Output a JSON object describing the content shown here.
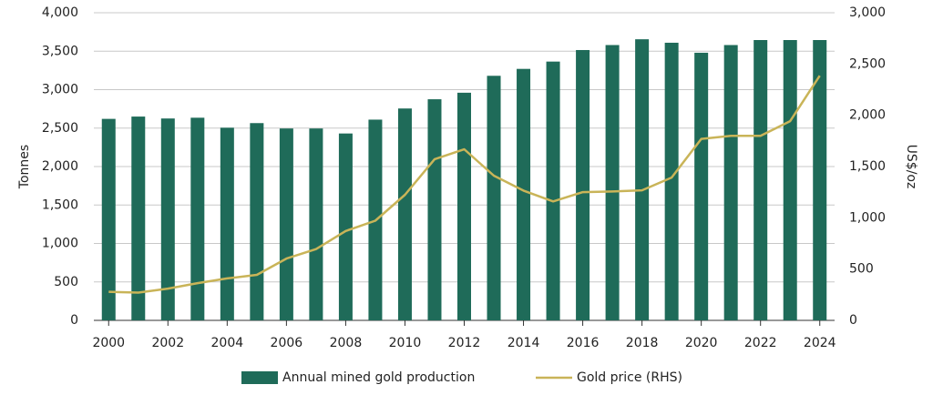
{
  "chart_data": {
    "type": "bar-line",
    "y_label": "Tonnes",
    "y2_label": "US$/oz",
    "categories": [
      "2000",
      null,
      "2002",
      null,
      "2004",
      null,
      "2006",
      null,
      "2008",
      null,
      "2010",
      null,
      "2012",
      null,
      "2014",
      null,
      "2016",
      null,
      "2018",
      null,
      "2020",
      null,
      "2022",
      null,
      "2024"
    ],
    "series": [
      {
        "name": "Annual mined gold production",
        "type": "bar",
        "color": "#1f6b59",
        "values": [
          2620,
          2650,
          2625,
          2635,
          2505,
          2565,
          2495,
          2495,
          2430,
          2610,
          2755,
          2875,
          2960,
          3180,
          3270,
          3365,
          3515,
          3580,
          3655,
          3610,
          3480,
          3580,
          3645,
          3645,
          3645
        ]
      },
      {
        "name": "Gold price (RHS)",
        "type": "line",
        "axis": "y2",
        "color": "#c9b458",
        "values": [
          279,
          271,
          310,
          363,
          409,
          444,
          603,
          695,
          872,
          972,
          1225,
          1572,
          1669,
          1411,
          1266,
          1160,
          1251,
          1257,
          1268,
          1393,
          1770,
          1799,
          1800,
          1943,
          2386
        ]
      }
    ],
    "ylim": [
      0,
      4000
    ],
    "yticks": [
      0,
      {
        "value": 500,
        "label": "500"
      },
      {
        "value": 1000,
        "label": "1,000"
      },
      {
        "value": 1500,
        "label": "1,500"
      },
      {
        "value": 2000,
        "label": "2,000"
      },
      {
        "value": 2500,
        "label": "2,500"
      },
      {
        "value": 3000,
        "label": "3,000"
      },
      {
        "value": 3500,
        "label": "3,500"
      },
      {
        "value": 4000,
        "label": "4,000"
      }
    ],
    "y2lim": [
      0,
      3000
    ],
    "y2ticks": [
      0,
      500,
      {
        "value": 1000,
        "label": "1,000"
      },
      {
        "value": 1500,
        "label": "1,500"
      },
      {
        "value": 2000,
        "label": "2,000"
      },
      {
        "value": 2500,
        "label": "2,500"
      },
      {
        "value": 3000,
        "label": "3,000"
      }
    ],
    "grid": true,
    "legend": "bottom"
  }
}
